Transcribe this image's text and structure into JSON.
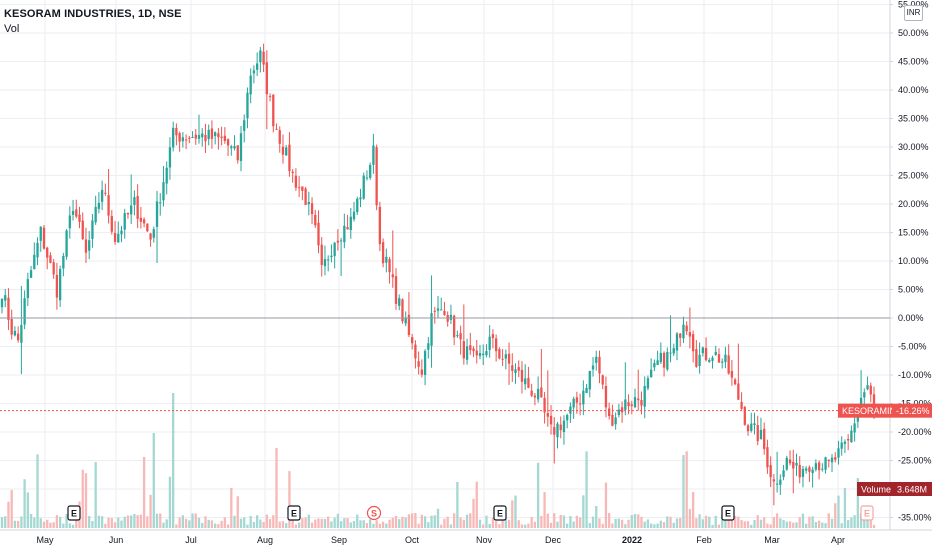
{
  "legend": {
    "title": "KESORAM INDUSTRIES, 1D, NSE",
    "volume_label": "Vol"
  },
  "currency": "INR",
  "colors": {
    "up": "#26a69a",
    "down": "#ef5350",
    "vol_up": "#a5d8d3",
    "vol_down": "#f7b9b8",
    "last_price_line": "#ef5350",
    "zero_line": "#9598a1",
    "volume_badge": "#a0262b",
    "grid": "#eceef2"
  },
  "chart_data": {
    "type": "candlestick",
    "y_axis": {
      "scale": "percentage",
      "range": [
        -35,
        55
      ],
      "ticks": [
        "55.00%",
        "50.00%",
        "45.00%",
        "40.00%",
        "35.00%",
        "30.00%",
        "25.00%",
        "20.00%",
        "15.00%",
        "10.00%",
        "5.00%",
        "0.00%",
        "-5.00%",
        "-10.00%",
        "-15.00%",
        "-20.00%",
        "-25.00%",
        "-30.00%",
        "-35.00%"
      ],
      "tick_values": [
        55,
        50,
        45,
        40,
        35,
        30,
        25,
        20,
        15,
        10,
        5,
        0,
        -5,
        -10,
        -15,
        -20,
        -25,
        -30,
        -35
      ]
    },
    "x_axis": {
      "labels": [
        "May",
        "Jun",
        "Jul",
        "Aug",
        "Sep",
        "Oct",
        "Nov",
        "Dec",
        "2022",
        "Feb",
        "Mar",
        "Apr"
      ],
      "bold_labels": [
        "2022"
      ]
    },
    "waypoints": [
      {
        "day": 0,
        "pct": 5
      },
      {
        "day": 3,
        "pct": -2
      },
      {
        "day": 5,
        "pct": -4
      },
      {
        "day": 8,
        "pct": 6
      },
      {
        "day": 12,
        "pct": 15
      },
      {
        "day": 17,
        "pct": 5
      },
      {
        "day": 22,
        "pct": 20
      },
      {
        "day": 26,
        "pct": 11
      },
      {
        "day": 31,
        "pct": 23
      },
      {
        "day": 35,
        "pct": 14
      },
      {
        "day": 41,
        "pct": 20
      },
      {
        "day": 46,
        "pct": 14
      },
      {
        "day": 53,
        "pct": 32
      },
      {
        "day": 62,
        "pct": 32
      },
      {
        "day": 69,
        "pct": 31
      },
      {
        "day": 73,
        "pct": 28
      },
      {
        "day": 77,
        "pct": 43
      },
      {
        "day": 80,
        "pct": 46
      },
      {
        "day": 84,
        "pct": 35
      },
      {
        "day": 90,
        "pct": 25
      },
      {
        "day": 94,
        "pct": 21
      },
      {
        "day": 97,
        "pct": 15
      },
      {
        "day": 99,
        "pct": 8
      },
      {
        "day": 103,
        "pct": 14
      },
      {
        "day": 108,
        "pct": 17
      },
      {
        "day": 111,
        "pct": 22
      },
      {
        "day": 115,
        "pct": 29
      },
      {
        "day": 117,
        "pct": 13
      },
      {
        "day": 122,
        "pct": 4
      },
      {
        "day": 127,
        "pct": -5
      },
      {
        "day": 130,
        "pct": -9
      },
      {
        "day": 133,
        "pct": 0
      },
      {
        "day": 137,
        "pct": 2
      },
      {
        "day": 142,
        "pct": -5
      },
      {
        "day": 147,
        "pct": -8
      },
      {
        "day": 151,
        "pct": -4
      },
      {
        "day": 155,
        "pct": -7
      },
      {
        "day": 160,
        "pct": -10
      },
      {
        "day": 166,
        "pct": -14
      },
      {
        "day": 170,
        "pct": -20
      },
      {
        "day": 174,
        "pct": -18
      },
      {
        "day": 179,
        "pct": -14
      },
      {
        "day": 184,
        "pct": -7
      },
      {
        "day": 188,
        "pct": -18
      },
      {
        "day": 193,
        "pct": -15
      },
      {
        "day": 198,
        "pct": -14
      },
      {
        "day": 203,
        "pct": -8
      },
      {
        "day": 208,
        "pct": -6
      },
      {
        "day": 211,
        "pct": 0
      },
      {
        "day": 213,
        "pct": -2
      },
      {
        "day": 215,
        "pct": -7
      },
      {
        "day": 220,
        "pct": -6
      },
      {
        "day": 224,
        "pct": -8
      },
      {
        "day": 228,
        "pct": -14
      },
      {
        "day": 231,
        "pct": -19
      },
      {
        "day": 235,
        "pct": -21
      },
      {
        "day": 239,
        "pct": -29
      },
      {
        "day": 243,
        "pct": -25
      },
      {
        "day": 246,
        "pct": -27
      },
      {
        "day": 251,
        "pct": -25
      },
      {
        "day": 256,
        "pct": -26
      },
      {
        "day": 262,
        "pct": -22
      },
      {
        "day": 266,
        "pct": -14
      },
      {
        "day": 268,
        "pct": -12
      },
      {
        "day": 270,
        "pct": -16.26
      }
    ],
    "last_price": {
      "label": "KESORAMIND",
      "value": "-16.26%",
      "pct": -16.26
    },
    "volume_badge": {
      "label": "Volume",
      "value": "3.648M"
    },
    "event_markers": [
      {
        "label": "E",
        "type": "earnings"
      },
      {
        "label": "E",
        "type": "earnings"
      },
      {
        "label": "S",
        "type": "split"
      },
      {
        "label": "E",
        "type": "earnings"
      },
      {
        "label": "E",
        "type": "earnings"
      },
      {
        "label": "E",
        "type": "earnings"
      }
    ],
    "grid": true,
    "zero_line": true
  }
}
